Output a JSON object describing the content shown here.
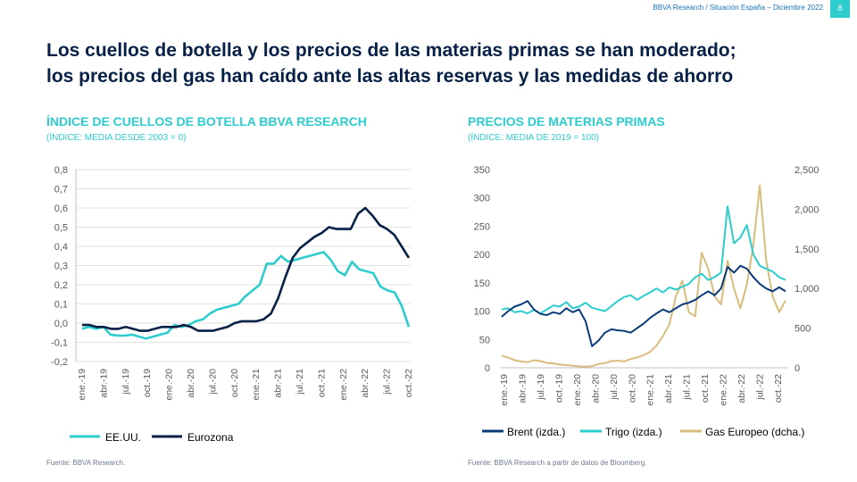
{
  "header": {
    "text": "BBVA Research / Situación España – Diciembre 2022",
    "page_number": "8"
  },
  "title": {
    "line1": "Los cuellos de botella y los precios de las materias primas se han moderado;",
    "line2": "los precios del gas han caído ante las altas reservas y las medidas de ahorro"
  },
  "left": {
    "title": "ÍNDICE DE CUELLOS DE BOTELLA BBVA RESEARCH",
    "subtitle": "(ÍNDICE:  MEDIA DESDE 2003 = 0)",
    "source": "Fuente: BBVA Research."
  },
  "right": {
    "title": "PRECIOS DE MATERIAS PRIMAS",
    "subtitle": "(ÍNDICE:  MEDIA DE 2019 = 100)",
    "source": "Fuente: BBVA Research a partir de datos de  Bloomberg."
  },
  "colors": {
    "navy": "#072146",
    "aqua": "#2dcccd",
    "brent": "#0b3c7a",
    "gas": "#d8bd7c",
    "axis": "#595959"
  },
  "chart_data": [
    {
      "type": "line",
      "ylim": [
        -0.2,
        0.8
      ],
      "yticks": [
        "-0,2",
        "-0,1",
        "0,0",
        "0,1",
        "0,2",
        "0,3",
        "0,4",
        "0,5",
        "0,6",
        "0,7",
        "0,8"
      ],
      "tick_labels": [
        "ene.-19",
        "abr.-19",
        "jul.-19",
        "oct.-19",
        "ene.-20",
        "abr.-20",
        "jul.-20",
        "oct.-20",
        "ene.-21",
        "abr.-21",
        "jul.-21",
        "oct.-21",
        "ene.-22",
        "abr.-22",
        "jul.-22",
        "oct.-22"
      ],
      "legend_position": "bottom",
      "series": [
        {
          "name": "EE.UU.",
          "color": "#2dcccd",
          "values": [
            -0.03,
            -0.02,
            -0.03,
            -0.02,
            -0.06,
            -0.065,
            -0.065,
            -0.06,
            -0.07,
            -0.08,
            -0.07,
            -0.06,
            -0.05,
            -0.01,
            -0.02,
            -0.01,
            0.01,
            0.02,
            0.05,
            0.07,
            0.08,
            0.09,
            0.1,
            0.14,
            0.17,
            0.2,
            0.31,
            0.31,
            0.35,
            0.32,
            0.33,
            0.34,
            0.35,
            0.36,
            0.37,
            0.33,
            0.27,
            0.25,
            0.32,
            0.28,
            0.27,
            0.26,
            0.19,
            0.17,
            0.16,
            0.09,
            -0.02
          ]
        },
        {
          "name": "Eurozona",
          "color": "#072146",
          "values": [
            -0.01,
            -0.01,
            -0.02,
            -0.02,
            -0.03,
            -0.03,
            -0.02,
            -0.03,
            -0.04,
            -0.04,
            -0.03,
            -0.02,
            -0.02,
            -0.02,
            -0.01,
            -0.02,
            -0.04,
            -0.04,
            -0.04,
            -0.03,
            -0.02,
            0.0,
            0.01,
            0.01,
            0.01,
            0.02,
            0.05,
            0.13,
            0.24,
            0.34,
            0.39,
            0.42,
            0.45,
            0.47,
            0.5,
            0.49,
            0.49,
            0.49,
            0.57,
            0.6,
            0.56,
            0.51,
            0.49,
            0.46,
            0.4,
            0.34
          ]
        }
      ]
    },
    {
      "type": "line",
      "ylim": [
        0,
        350
      ],
      "y2lim": [
        0,
        2500
      ],
      "yticks": [
        "0",
        "50",
        "100",
        "150",
        "200",
        "250",
        "300",
        "350"
      ],
      "y2ticks": [
        "0",
        "500",
        "1,000",
        "1,500",
        "2,000",
        "2,500"
      ],
      "tick_labels": [
        "ene.-19",
        "abr.-19",
        "jul.-19",
        "oct.-19",
        "ene.-20",
        "abr.-20",
        "jul.-20",
        "oct.-20",
        "ene.-21",
        "abr.-21",
        "jul.-21",
        "oct.-21",
        "ene.-22",
        "abr.-22",
        "jul.-22",
        "oct.-22"
      ],
      "legend_position": "bottom",
      "series": [
        {
          "name": "Brent (izda.)",
          "color": "#0b3c7a",
          "axis": "left",
          "values": [
            90,
            100,
            108,
            112,
            118,
            103,
            95,
            93,
            98,
            95,
            105,
            98,
            103,
            82,
            38,
            48,
            62,
            68,
            66,
            65,
            62,
            70,
            78,
            88,
            96,
            103,
            98,
            105,
            112,
            115,
            120,
            128,
            135,
            128,
            140,
            178,
            168,
            180,
            175,
            160,
            148,
            140,
            135,
            142,
            135
          ]
        },
        {
          "name": "Trigo (izda.)",
          "color": "#2dcccd",
          "axis": "left",
          "values": [
            103,
            105,
            98,
            100,
            96,
            102,
            96,
            103,
            110,
            108,
            116,
            105,
            108,
            115,
            106,
            103,
            100,
            109,
            118,
            125,
            128,
            120,
            127,
            133,
            140,
            133,
            142,
            138,
            143,
            148,
            160,
            166,
            155,
            160,
            168,
            285,
            220,
            230,
            252,
            200,
            180,
            175,
            170,
            160,
            155
          ]
        },
        {
          "name": "Gas Europeo (dcha.)",
          "color": "#d8bd7c",
          "axis": "right",
          "values": [
            150,
            130,
            95,
            80,
            70,
            95,
            85,
            60,
            55,
            40,
            35,
            25,
            18,
            15,
            20,
            45,
            60,
            85,
            90,
            80,
            110,
            130,
            160,
            200,
            280,
            400,
            550,
            900,
            1100,
            700,
            650,
            1450,
            1250,
            900,
            800,
            1350,
            1000,
            750,
            1050,
            1550,
            2300,
            1350,
            900,
            700,
            850
          ]
        }
      ]
    }
  ]
}
